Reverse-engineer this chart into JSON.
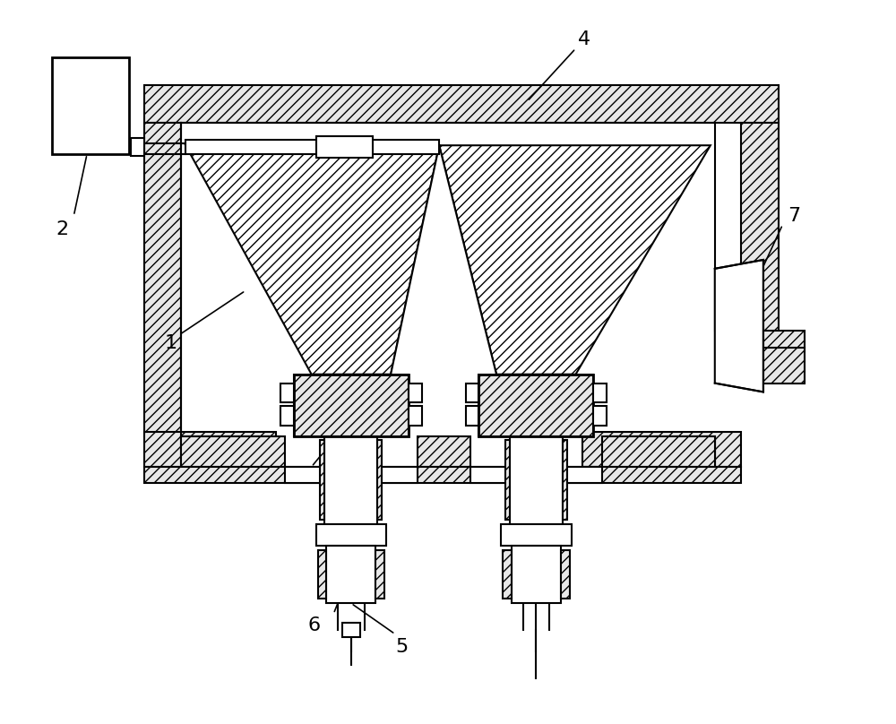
{
  "bg_color": "#ffffff",
  "line_color": "#000000",
  "label_color": "#000000",
  "label_fontsize": 16,
  "figsize": [
    10.0,
    8.08
  ],
  "dpi": 100
}
